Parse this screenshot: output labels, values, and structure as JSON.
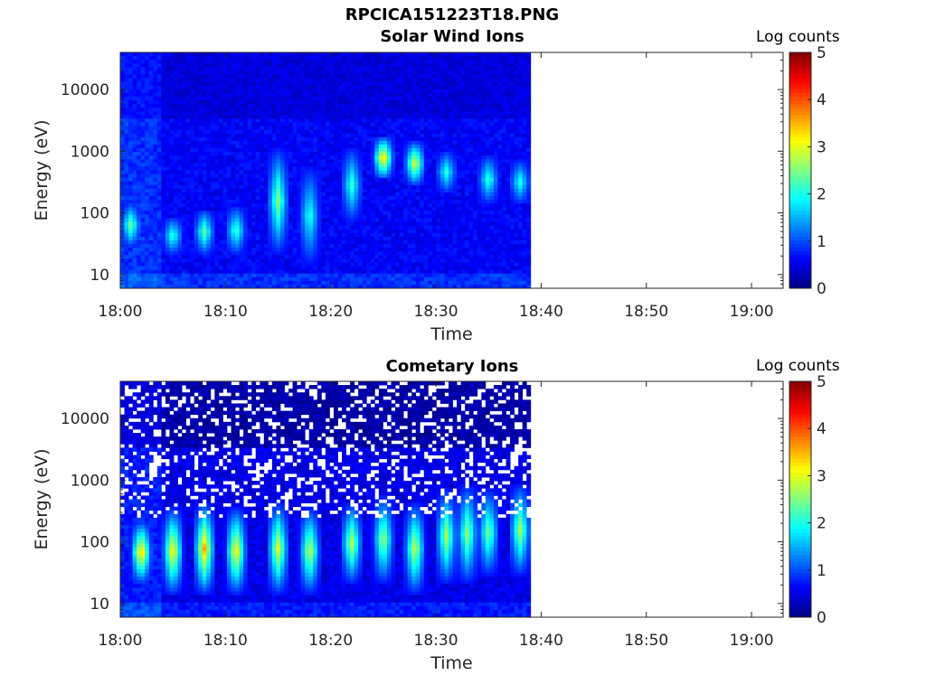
{
  "page_title": "RPCICA151223T18.PNG",
  "chart_data": [
    {
      "type": "heatmap",
      "title": "Solar Wind Ions",
      "xlabel": "Time",
      "ylabel": "Energy (eV)",
      "y_scale": "log",
      "ylim": [
        6,
        40000
      ],
      "yticks": [
        10,
        100,
        1000,
        10000
      ],
      "ytick_labels": [
        "10",
        "100",
        "1000",
        "10000"
      ],
      "xlim": [
        "18:00",
        "19:03"
      ],
      "xtick_labels": [
        "18:00",
        "18:10",
        "18:20",
        "18:30",
        "18:40",
        "18:50",
        "19:00"
      ],
      "data_extent": [
        "18:00",
        "18:39"
      ],
      "colorbar": {
        "label": "Log counts",
        "range": [
          0,
          5
        ],
        "ticks": [
          "0",
          "1",
          "2",
          "3",
          "4",
          "5"
        ],
        "colormap": "jet"
      },
      "background_level": 0.6,
      "high_energy_level": 0.45,
      "bursts": [
        {
          "time": "18:01",
          "energy_low": 40,
          "energy_high": 100,
          "level": 1.9
        },
        {
          "time": "18:05",
          "energy_low": 30,
          "energy_high": 60,
          "level": 1.6
        },
        {
          "time": "18:08",
          "energy_low": 30,
          "energy_high": 80,
          "level": 1.8
        },
        {
          "time": "18:11",
          "energy_low": 30,
          "energy_high": 90,
          "level": 1.7
        },
        {
          "time": "18:15",
          "energy_low": 30,
          "energy_high": 800,
          "level": 2.0
        },
        {
          "time": "18:18",
          "energy_low": 20,
          "energy_high": 400,
          "level": 1.5
        },
        {
          "time": "18:22",
          "energy_low": 100,
          "energy_high": 800,
          "level": 1.6
        },
        {
          "time": "18:25",
          "energy_low": 500,
          "energy_high": 1200,
          "level": 3.0
        },
        {
          "time": "18:28",
          "energy_low": 400,
          "energy_high": 1000,
          "level": 2.6
        },
        {
          "time": "18:31",
          "energy_low": 300,
          "energy_high": 700,
          "level": 1.5
        },
        {
          "time": "18:35",
          "energy_low": 200,
          "energy_high": 600,
          "level": 1.6
        },
        {
          "time": "18:38",
          "energy_low": 200,
          "energy_high": 500,
          "level": 1.5
        }
      ]
    },
    {
      "type": "heatmap",
      "title": "Cometary Ions",
      "xlabel": "Time",
      "ylabel": "Energy (eV)",
      "y_scale": "log",
      "ylim": [
        6,
        40000
      ],
      "yticks": [
        10,
        100,
        1000,
        10000
      ],
      "ytick_labels": [
        "10",
        "100",
        "1000",
        "10000"
      ],
      "xlim": [
        "18:00",
        "19:03"
      ],
      "xtick_labels": [
        "18:00",
        "18:10",
        "18:20",
        "18:30",
        "18:40",
        "18:50",
        "19:00"
      ],
      "data_extent": [
        "18:00",
        "18:39"
      ],
      "colorbar": {
        "label": "Log counts",
        "range": [
          0,
          5
        ],
        "ticks": [
          "0",
          "1",
          "2",
          "3",
          "4",
          "5"
        ],
        "colormap": "jet"
      },
      "background_level": 0.5,
      "high_energy_level": 0.2,
      "bursts": [
        {
          "time": "18:02",
          "energy_low": 30,
          "energy_high": 150,
          "level": 3.0
        },
        {
          "time": "18:05",
          "energy_low": 20,
          "energy_high": 250,
          "level": 2.8
        },
        {
          "time": "18:08",
          "energy_low": 20,
          "energy_high": 300,
          "level": 3.0
        },
        {
          "time": "18:11",
          "energy_low": 20,
          "energy_high": 250,
          "level": 2.8
        },
        {
          "time": "18:15",
          "energy_low": 20,
          "energy_high": 300,
          "level": 2.5
        },
        {
          "time": "18:18",
          "energy_low": 20,
          "energy_high": 250,
          "level": 2.4
        },
        {
          "time": "18:22",
          "energy_low": 30,
          "energy_high": 300,
          "level": 2.3
        },
        {
          "time": "18:25",
          "energy_low": 30,
          "energy_high": 400,
          "level": 2.2
        },
        {
          "time": "18:28",
          "energy_low": 20,
          "energy_high": 300,
          "level": 2.4
        },
        {
          "time": "18:31",
          "energy_low": 30,
          "energy_high": 500,
          "level": 2.2
        },
        {
          "time": "18:33",
          "energy_low": 30,
          "energy_high": 600,
          "level": 2.1
        },
        {
          "time": "18:35",
          "energy_low": 40,
          "energy_high": 500,
          "level": 2.0
        },
        {
          "time": "18:38",
          "energy_low": 40,
          "energy_high": 600,
          "level": 2.2
        }
      ]
    }
  ]
}
